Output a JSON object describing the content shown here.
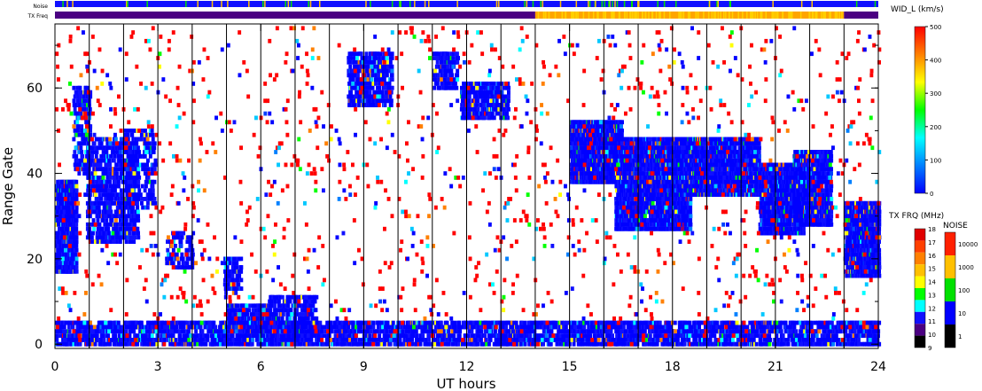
{
  "chart_data": {
    "type": "heatmap",
    "xlabel": "UT hours",
    "ylabel": "Range Gate",
    "xlim": [
      0,
      24
    ],
    "ylim": [
      -1,
      75
    ],
    "x_ticks": [
      "0",
      "3",
      "6",
      "9",
      "12",
      "15",
      "18",
      "21",
      "24"
    ],
    "y_ticks": [
      "0",
      "20",
      "40",
      "60"
    ],
    "hour_lines": [
      1,
      2,
      3,
      4,
      5,
      6,
      7,
      8,
      9,
      10,
      11,
      12,
      13,
      14,
      15,
      16,
      17,
      18,
      19,
      20,
      21,
      22,
      23
    ],
    "top_strips": {
      "noise_label": "Noise",
      "txfreq_label": "TX Freq",
      "txfreq_segments": [
        {
          "start": 0,
          "end": 14,
          "color": "#4b0082"
        },
        {
          "start": 14,
          "end": 23,
          "color": "#ffa500"
        },
        {
          "start": 23,
          "end": 24,
          "color": "#4b0082"
        }
      ]
    },
    "scatter_regions": [
      {
        "x": [
          0,
          0.6
        ],
        "y": [
          17,
          38
        ],
        "density": 0.85
      },
      {
        "x": [
          0.5,
          1.0
        ],
        "y": [
          40,
          60
        ],
        "density": 0.4
      },
      {
        "x": [
          0.9,
          2.4
        ],
        "y": [
          24,
          48
        ],
        "density": 0.45
      },
      {
        "x": [
          2.0,
          2.9
        ],
        "y": [
          32,
          50
        ],
        "density": 0.3
      },
      {
        "x": [
          3.2,
          4.0
        ],
        "y": [
          18,
          26
        ],
        "density": 0.3
      },
      {
        "x": [
          4.9,
          5.4
        ],
        "y": [
          12,
          20
        ],
        "density": 0.45
      },
      {
        "x": [
          5.0,
          6.2
        ],
        "y": [
          3,
          9
        ],
        "density": 0.55
      },
      {
        "x": [
          6.2,
          7.6
        ],
        "y": [
          2,
          11
        ],
        "density": 0.45
      },
      {
        "x": [
          8.5,
          9.8
        ],
        "y": [
          56,
          68
        ],
        "density": 0.5
      },
      {
        "x": [
          11.0,
          11.7
        ],
        "y": [
          60,
          68
        ],
        "density": 0.5
      },
      {
        "x": [
          11.8,
          13.2
        ],
        "y": [
          53,
          61
        ],
        "density": 0.5
      },
      {
        "x": [
          15.0,
          16.5
        ],
        "y": [
          38,
          52
        ],
        "density": 0.85
      },
      {
        "x": [
          16.3,
          18.5
        ],
        "y": [
          27,
          48
        ],
        "density": 0.8
      },
      {
        "x": [
          18.2,
          20.5
        ],
        "y": [
          35,
          48
        ],
        "density": 0.75
      },
      {
        "x": [
          20.5,
          21.8
        ],
        "y": [
          26,
          42
        ],
        "density": 0.8
      },
      {
        "x": [
          21.5,
          22.6
        ],
        "y": [
          28,
          45
        ],
        "density": 0.7
      },
      {
        "x": [
          23.0,
          24.0
        ],
        "y": [
          16,
          33
        ],
        "density": 0.85
      },
      {
        "x": [
          0,
          24
        ],
        "y": [
          0,
          5
        ],
        "density": 0.5
      },
      {
        "x": [
          0,
          24
        ],
        "y": [
          0,
          74
        ],
        "density": 0.018
      }
    ],
    "colorbars": [
      {
        "title": "WID_L (km/s)",
        "type": "continuous",
        "ticks": [
          "500",
          "400",
          "300",
          "200",
          "100",
          "0"
        ],
        "colors": [
          "#ff0000",
          "#ff8000",
          "#ffff00",
          "#00ff00",
          "#00ffff",
          "#0080ff",
          "#0000ff"
        ]
      },
      {
        "title": "TX FRQ (MHz)",
        "type": "discrete",
        "ticks": [
          "18",
          "17",
          "16",
          "15",
          "14",
          "13",
          "12",
          "11",
          "10",
          "9"
        ],
        "colors": [
          "#e00000",
          "#ff4000",
          "#ff8000",
          "#ffc000",
          "#ffff00",
          "#00ff00",
          "#00ffff",
          "#1010ff",
          "#4b0082",
          "#000000"
        ]
      },
      {
        "title": "NOISE",
        "type": "discrete",
        "ticks": [
          "10000",
          "1000",
          "100",
          "10",
          "1"
        ],
        "colors": [
          "#ff2000",
          "#ffc000",
          "#00e000",
          "#0000ff",
          "#000000"
        ]
      }
    ]
  }
}
